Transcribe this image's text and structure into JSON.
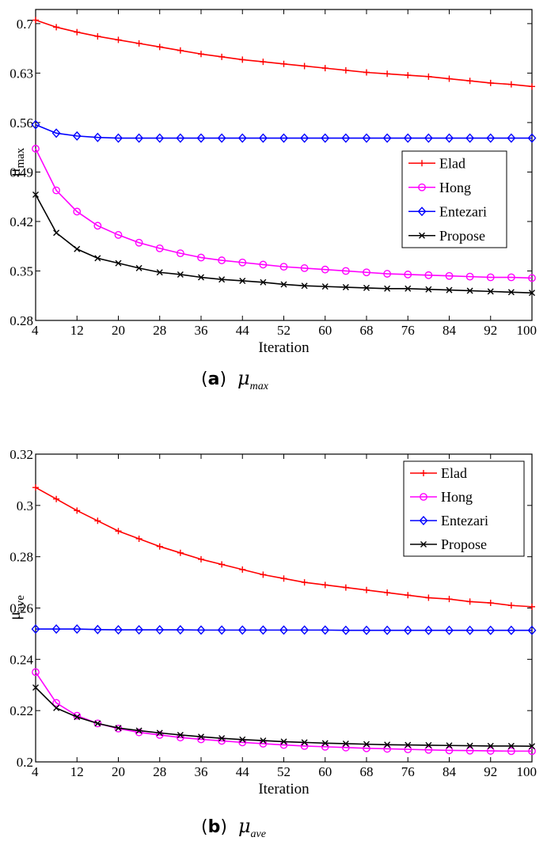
{
  "chart_data": [
    {
      "id": "a",
      "type": "line",
      "caption_label": "a",
      "caption_symbol": "μ",
      "caption_subscript": "max",
      "xlabel": "Iteration",
      "ylabel_main": "μ",
      "ylabel_sub": "max",
      "xlim": [
        4,
        100
      ],
      "ylim": [
        0.28,
        0.72
      ],
      "xticks": [
        4,
        12,
        20,
        28,
        36,
        44,
        52,
        60,
        68,
        76,
        84,
        92,
        100
      ],
      "yticks": [
        0.28,
        0.35,
        0.42,
        0.49,
        0.56,
        0.63,
        0.7
      ],
      "ytick_labels": [
        "0.28",
        "0.35",
        "0.42",
        "0.49",
        "0.56",
        "0.63",
        "0.7"
      ],
      "legend_position": "center-right",
      "x": [
        4,
        8,
        12,
        16,
        20,
        24,
        28,
        32,
        36,
        40,
        44,
        48,
        52,
        56,
        60,
        64,
        68,
        72,
        76,
        80,
        84,
        88,
        92,
        96,
        100
      ],
      "series": [
        {
          "name": "Elad",
          "color": "#ff0000",
          "marker": "plus",
          "values": [
            0.705,
            0.695,
            0.688,
            0.682,
            0.677,
            0.672,
            0.667,
            0.662,
            0.657,
            0.653,
            0.649,
            0.646,
            0.643,
            0.64,
            0.637,
            0.634,
            0.631,
            0.629,
            0.627,
            0.625,
            0.622,
            0.619,
            0.616,
            0.614,
            0.611
          ]
        },
        {
          "name": "Hong",
          "color": "#ff00ff",
          "marker": "circle",
          "values": [
            0.523,
            0.464,
            0.434,
            0.414,
            0.401,
            0.39,
            0.382,
            0.375,
            0.369,
            0.365,
            0.362,
            0.359,
            0.356,
            0.354,
            0.352,
            0.35,
            0.348,
            0.346,
            0.345,
            0.344,
            0.343,
            0.342,
            0.341,
            0.341,
            0.34
          ]
        },
        {
          "name": "Entezari",
          "color": "#0000ff",
          "marker": "diamond",
          "values": [
            0.557,
            0.545,
            0.541,
            0.539,
            0.538,
            0.538,
            0.538,
            0.538,
            0.538,
            0.538,
            0.538,
            0.538,
            0.538,
            0.538,
            0.538,
            0.538,
            0.538,
            0.538,
            0.538,
            0.538,
            0.538,
            0.538,
            0.538,
            0.538,
            0.538
          ]
        },
        {
          "name": "Propose",
          "color": "#000000",
          "marker": "x",
          "values": [
            0.458,
            0.404,
            0.381,
            0.368,
            0.361,
            0.354,
            0.348,
            0.345,
            0.341,
            0.338,
            0.336,
            0.334,
            0.331,
            0.329,
            0.328,
            0.327,
            0.326,
            0.325,
            0.325,
            0.324,
            0.323,
            0.322,
            0.321,
            0.32,
            0.319
          ]
        }
      ]
    },
    {
      "id": "b",
      "type": "line",
      "caption_label": "b",
      "caption_symbol": "μ",
      "caption_subscript": "ave",
      "xlabel": "Iteration",
      "ylabel_main": "μ",
      "ylabel_sub": "ave",
      "xlim": [
        4,
        100
      ],
      "ylim": [
        0.2,
        0.32
      ],
      "xticks": [
        4,
        12,
        20,
        28,
        36,
        44,
        52,
        60,
        68,
        76,
        84,
        92,
        100
      ],
      "yticks": [
        0.2,
        0.22,
        0.24,
        0.26,
        0.28,
        0.3,
        0.32
      ],
      "ytick_labels": [
        "0.2",
        "0.22",
        "0.24",
        "0.26",
        "0.28",
        "0.3",
        "0.32"
      ],
      "legend_position": "top-right",
      "x": [
        4,
        8,
        12,
        16,
        20,
        24,
        28,
        32,
        36,
        40,
        44,
        48,
        52,
        56,
        60,
        64,
        68,
        72,
        76,
        80,
        84,
        88,
        92,
        96,
        100
      ],
      "series": [
        {
          "name": "Elad",
          "color": "#ff0000",
          "marker": "plus",
          "values": [
            0.307,
            0.3025,
            0.298,
            0.294,
            0.29,
            0.287,
            0.284,
            0.2815,
            0.279,
            0.277,
            0.275,
            0.273,
            0.2715,
            0.27,
            0.269,
            0.268,
            0.267,
            0.266,
            0.265,
            0.264,
            0.2635,
            0.2625,
            0.262,
            0.261,
            0.2605
          ]
        },
        {
          "name": "Hong",
          "color": "#ff00ff",
          "marker": "circle",
          "values": [
            0.235,
            0.223,
            0.218,
            0.215,
            0.213,
            0.2115,
            0.2105,
            0.2095,
            0.2088,
            0.2082,
            0.2076,
            0.2071,
            0.2066,
            0.2062,
            0.2059,
            0.2056,
            0.2053,
            0.2051,
            0.2049,
            0.2047,
            0.2045,
            0.2044,
            0.2043,
            0.2042,
            0.2042
          ]
        },
        {
          "name": "Entezari",
          "color": "#0000ff",
          "marker": "diamond",
          "values": [
            0.2518,
            0.2518,
            0.2518,
            0.2516,
            0.2515,
            0.2515,
            0.2515,
            0.2515,
            0.2514,
            0.2514,
            0.2514,
            0.2514,
            0.2514,
            0.2514,
            0.2514,
            0.2513,
            0.2513,
            0.2513,
            0.2513,
            0.2513,
            0.2513,
            0.2513,
            0.2513,
            0.2513,
            0.2513
          ]
        },
        {
          "name": "Propose",
          "color": "#000000",
          "marker": "x",
          "values": [
            0.229,
            0.221,
            0.2175,
            0.215,
            0.2132,
            0.2122,
            0.2113,
            0.2105,
            0.2098,
            0.2092,
            0.2087,
            0.2083,
            0.2079,
            0.2076,
            0.2073,
            0.2071,
            0.2069,
            0.2067,
            0.2066,
            0.2065,
            0.2064,
            0.2063,
            0.2062,
            0.2062,
            0.2061
          ]
        }
      ]
    }
  ]
}
